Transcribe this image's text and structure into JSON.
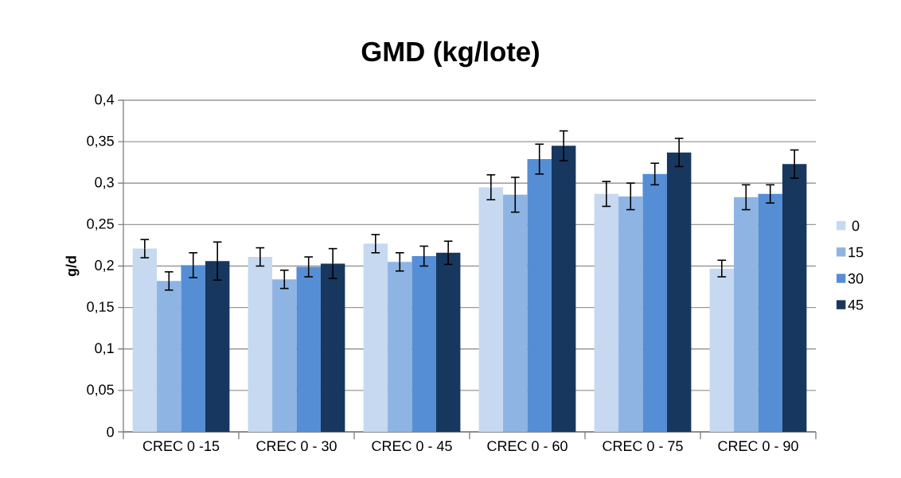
{
  "chart_data": {
    "type": "bar",
    "title": "GMD (kg/lote)",
    "ylabel": "g/d",
    "categories": [
      "CREC 0 -15",
      "CREC 0 - 30",
      "CREC 0 - 45",
      "CREC 0 - 60",
      "CREC 0 - 75",
      "CREC 0 - 90"
    ],
    "series": [
      {
        "name": "0",
        "color": "#c6d9f1",
        "values": [
          0.221,
          0.211,
          0.227,
          0.295,
          0.287,
          0.197
        ],
        "errors": [
          0.011,
          0.011,
          0.011,
          0.015,
          0.015,
          0.01
        ]
      },
      {
        "name": "15",
        "color": "#8eb4e3",
        "values": [
          0.182,
          0.184,
          0.205,
          0.286,
          0.284,
          0.283
        ],
        "errors": [
          0.011,
          0.011,
          0.011,
          0.021,
          0.016,
          0.015
        ]
      },
      {
        "name": "30",
        "color": "#558ed5",
        "values": [
          0.201,
          0.199,
          0.212,
          0.329,
          0.311,
          0.287
        ],
        "errors": [
          0.015,
          0.012,
          0.012,
          0.018,
          0.013,
          0.011
        ]
      },
      {
        "name": "45",
        "color": "#17375e",
        "values": [
          0.206,
          0.203,
          0.216,
          0.345,
          0.337,
          0.323
        ],
        "errors": [
          0.023,
          0.018,
          0.014,
          0.018,
          0.017,
          0.017
        ]
      }
    ],
    "ylim": [
      0,
      0.4
    ],
    "yticks": [
      0,
      {
        "value": 0.05,
        "label": "0,05"
      },
      {
        "value": 0.1,
        "label": "0,1"
      },
      {
        "value": 0.15,
        "label": "0,15"
      },
      {
        "value": 0.2,
        "label": "0,2"
      },
      {
        "value": 0.25,
        "label": "0,25"
      },
      {
        "value": 0.3,
        "label": "0,3"
      },
      {
        "value": 0.35,
        "label": "0,35"
      },
      {
        "value": 0.4,
        "label": "0,4"
      }
    ],
    "grid": "y",
    "legend": "right"
  }
}
